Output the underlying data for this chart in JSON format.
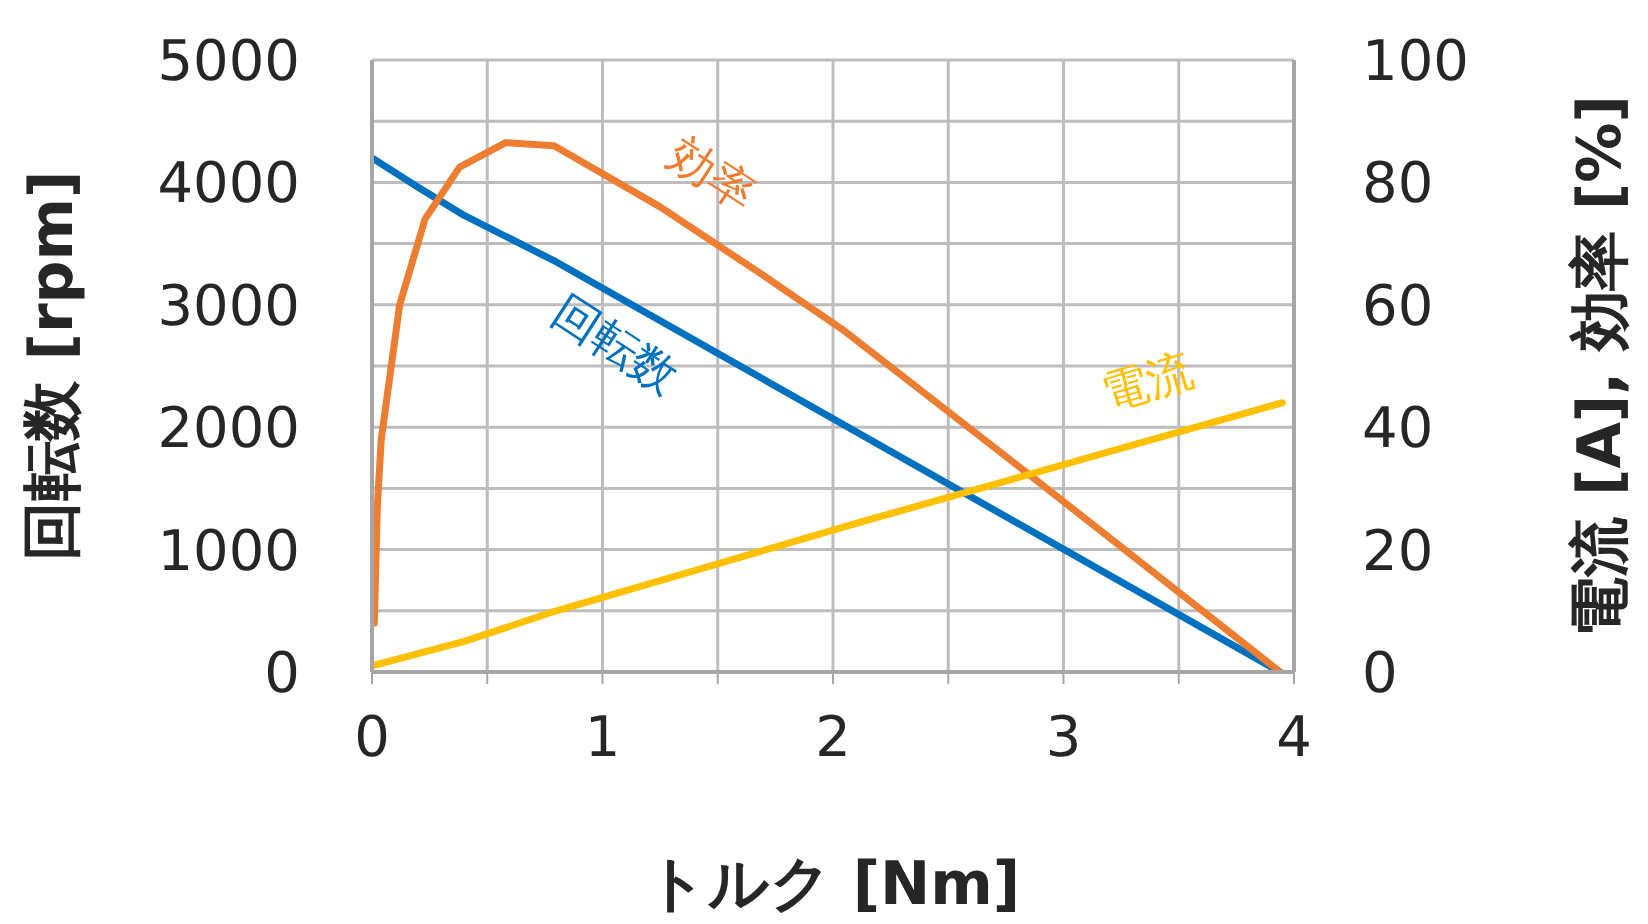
{
  "chart_data": {
    "type": "line",
    "xlabel": "トルク [Nm]",
    "ylabel": "回転数 [rpm]",
    "y2label": "電流 [A], 効率 [%]",
    "xlim": [
      0,
      4
    ],
    "xticks": [
      0,
      {
        "value": 0.5,
        "label": null
      },
      1,
      {
        "value": 1.5,
        "label": null
      },
      2,
      {
        "value": 2.5,
        "label": null
      },
      3,
      {
        "value": 3.5,
        "label": null
      },
      4
    ],
    "ylim": [
      0,
      5000
    ],
    "yticks": [
      0,
      {
        "value": 500,
        "label": null
      },
      1000,
      {
        "value": 1500,
        "label": null
      },
      2000,
      {
        "value": 2500,
        "label": null
      },
      3000,
      {
        "value": 3500,
        "label": null
      },
      4000,
      {
        "value": 4500,
        "label": null
      },
      5000
    ],
    "y2lim": [
      0,
      100
    ],
    "y2ticks": [
      0,
      20,
      40,
      60,
      80,
      100
    ],
    "grid": true,
    "marker": "none",
    "line_style": "solid",
    "series": [
      {
        "name": "回転数",
        "color": "#0070c0",
        "x": [
          0,
          0.2,
          0.4,
          0.6,
          0.8,
          3.94
        ],
        "values": [
          4200,
          3960,
          3730,
          3540,
          3350,
          0
        ]
      },
      {
        "name": "効率",
        "color": "#ed7d31",
        "axis": "y2",
        "x": [
          0.01,
          0.023,
          0.04,
          0.12,
          0.23,
          0.38,
          0.58,
          0.79,
          1.25,
          1.69,
          2.04,
          2.86,
          3.94
        ],
        "values": [
          8,
          27,
          38,
          60,
          74,
          82.5,
          86.5,
          86,
          76,
          65,
          56,
          32,
          0
        ]
      },
      {
        "name": "電流",
        "color": "#ffc000",
        "axis": "y2",
        "x": [
          0,
          0.4,
          0.8,
          2.13,
          3.95
        ],
        "values": [
          1,
          5,
          10,
          24.6,
          44
        ]
      }
    ]
  }
}
